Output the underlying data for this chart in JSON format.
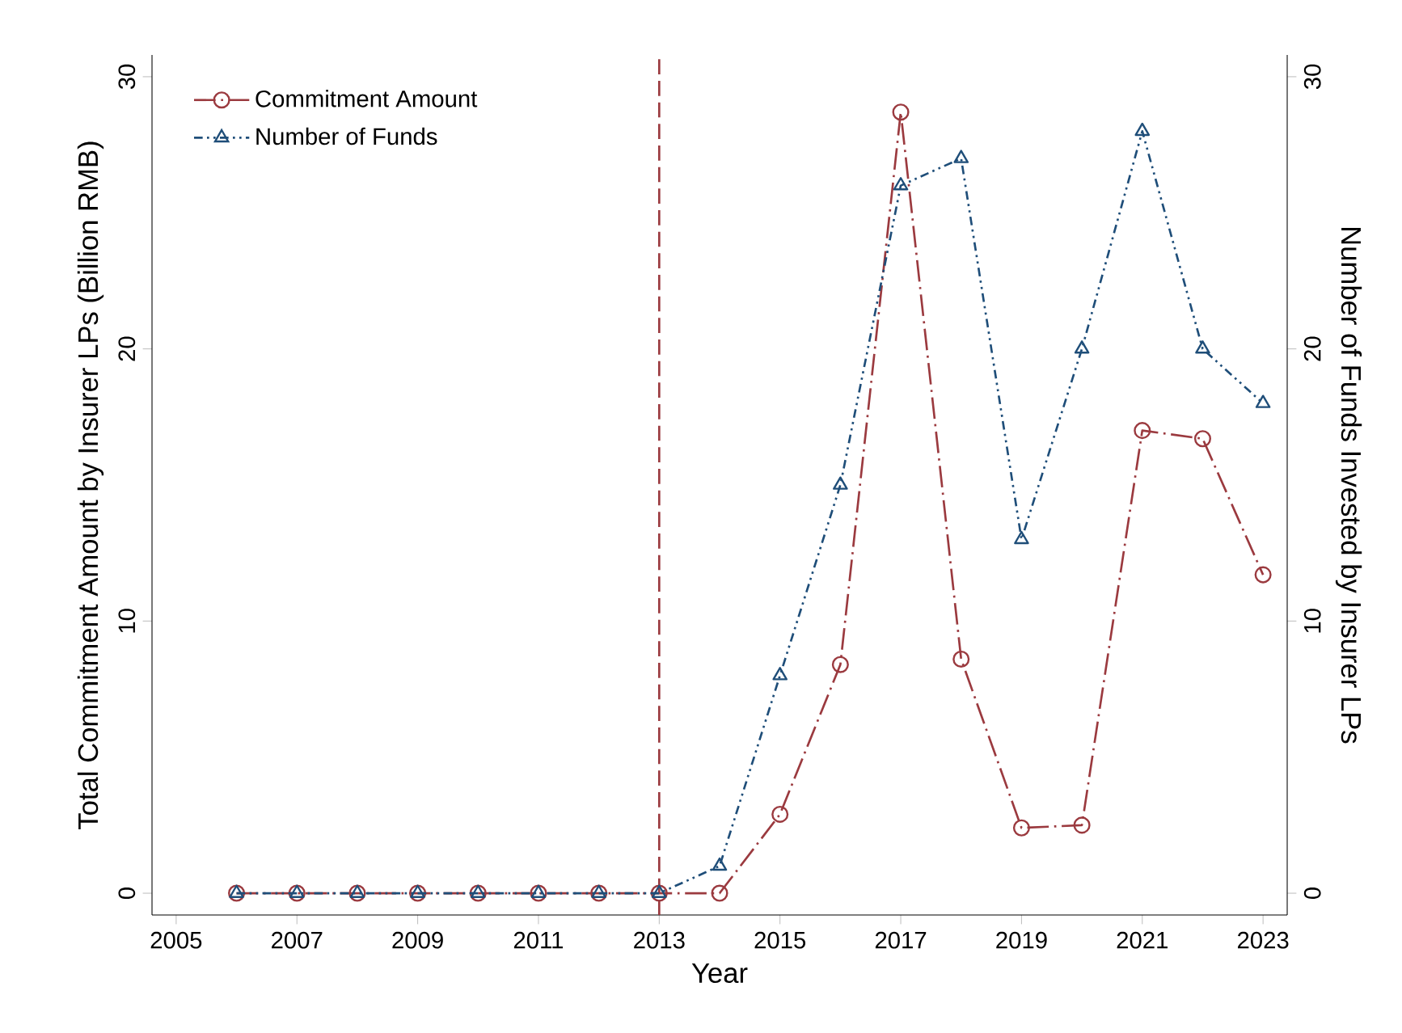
{
  "chart_data": {
    "type": "line",
    "xlabel": "Year",
    "ylabel": "Total Commitment Amount by Insurer LPs (Billion RMB)",
    "y2label": "Number of Funds Invested by Insurer LPs",
    "x": [
      2006,
      2007,
      2008,
      2009,
      2010,
      2011,
      2012,
      2013,
      2014,
      2015,
      2016,
      2017,
      2018,
      2019,
      2020,
      2021,
      2022,
      2023
    ],
    "series": [
      {
        "name": "Commitment Amount",
        "color": "#9b3a3f",
        "marker": "circle",
        "line_style": "dashed",
        "values": [
          0,
          0,
          0,
          0,
          0,
          0,
          0,
          0,
          0,
          2.9,
          8.4,
          28.7,
          8.6,
          2.4,
          2.5,
          17.0,
          16.7,
          11.7
        ]
      },
      {
        "name": "Number of Funds",
        "color": "#1f4e79",
        "marker": "triangle",
        "line_style": "dotted",
        "axis": "y2",
        "values": [
          0,
          0,
          0,
          0,
          0,
          0,
          0,
          0,
          1,
          8,
          15,
          26,
          27,
          13,
          20,
          28,
          20,
          18
        ]
      }
    ],
    "xlim": [
      2004.6,
      2023.4
    ],
    "xticks": [
      2005,
      2007,
      2009,
      2011,
      2013,
      2015,
      2017,
      2019,
      2021,
      2023
    ],
    "ylim": [
      -0.8,
      30.8
    ],
    "yticks": [
      0,
      10,
      20,
      30
    ],
    "y2lim": [
      -0.8,
      30.8
    ],
    "y2ticks": [
      0,
      10,
      20,
      30
    ],
    "ref_lines": [
      {
        "axis": "x",
        "value": 2013,
        "color": "#9b3a3f",
        "line_style": "dashed"
      }
    ],
    "legend": "top left",
    "grid": false
  }
}
